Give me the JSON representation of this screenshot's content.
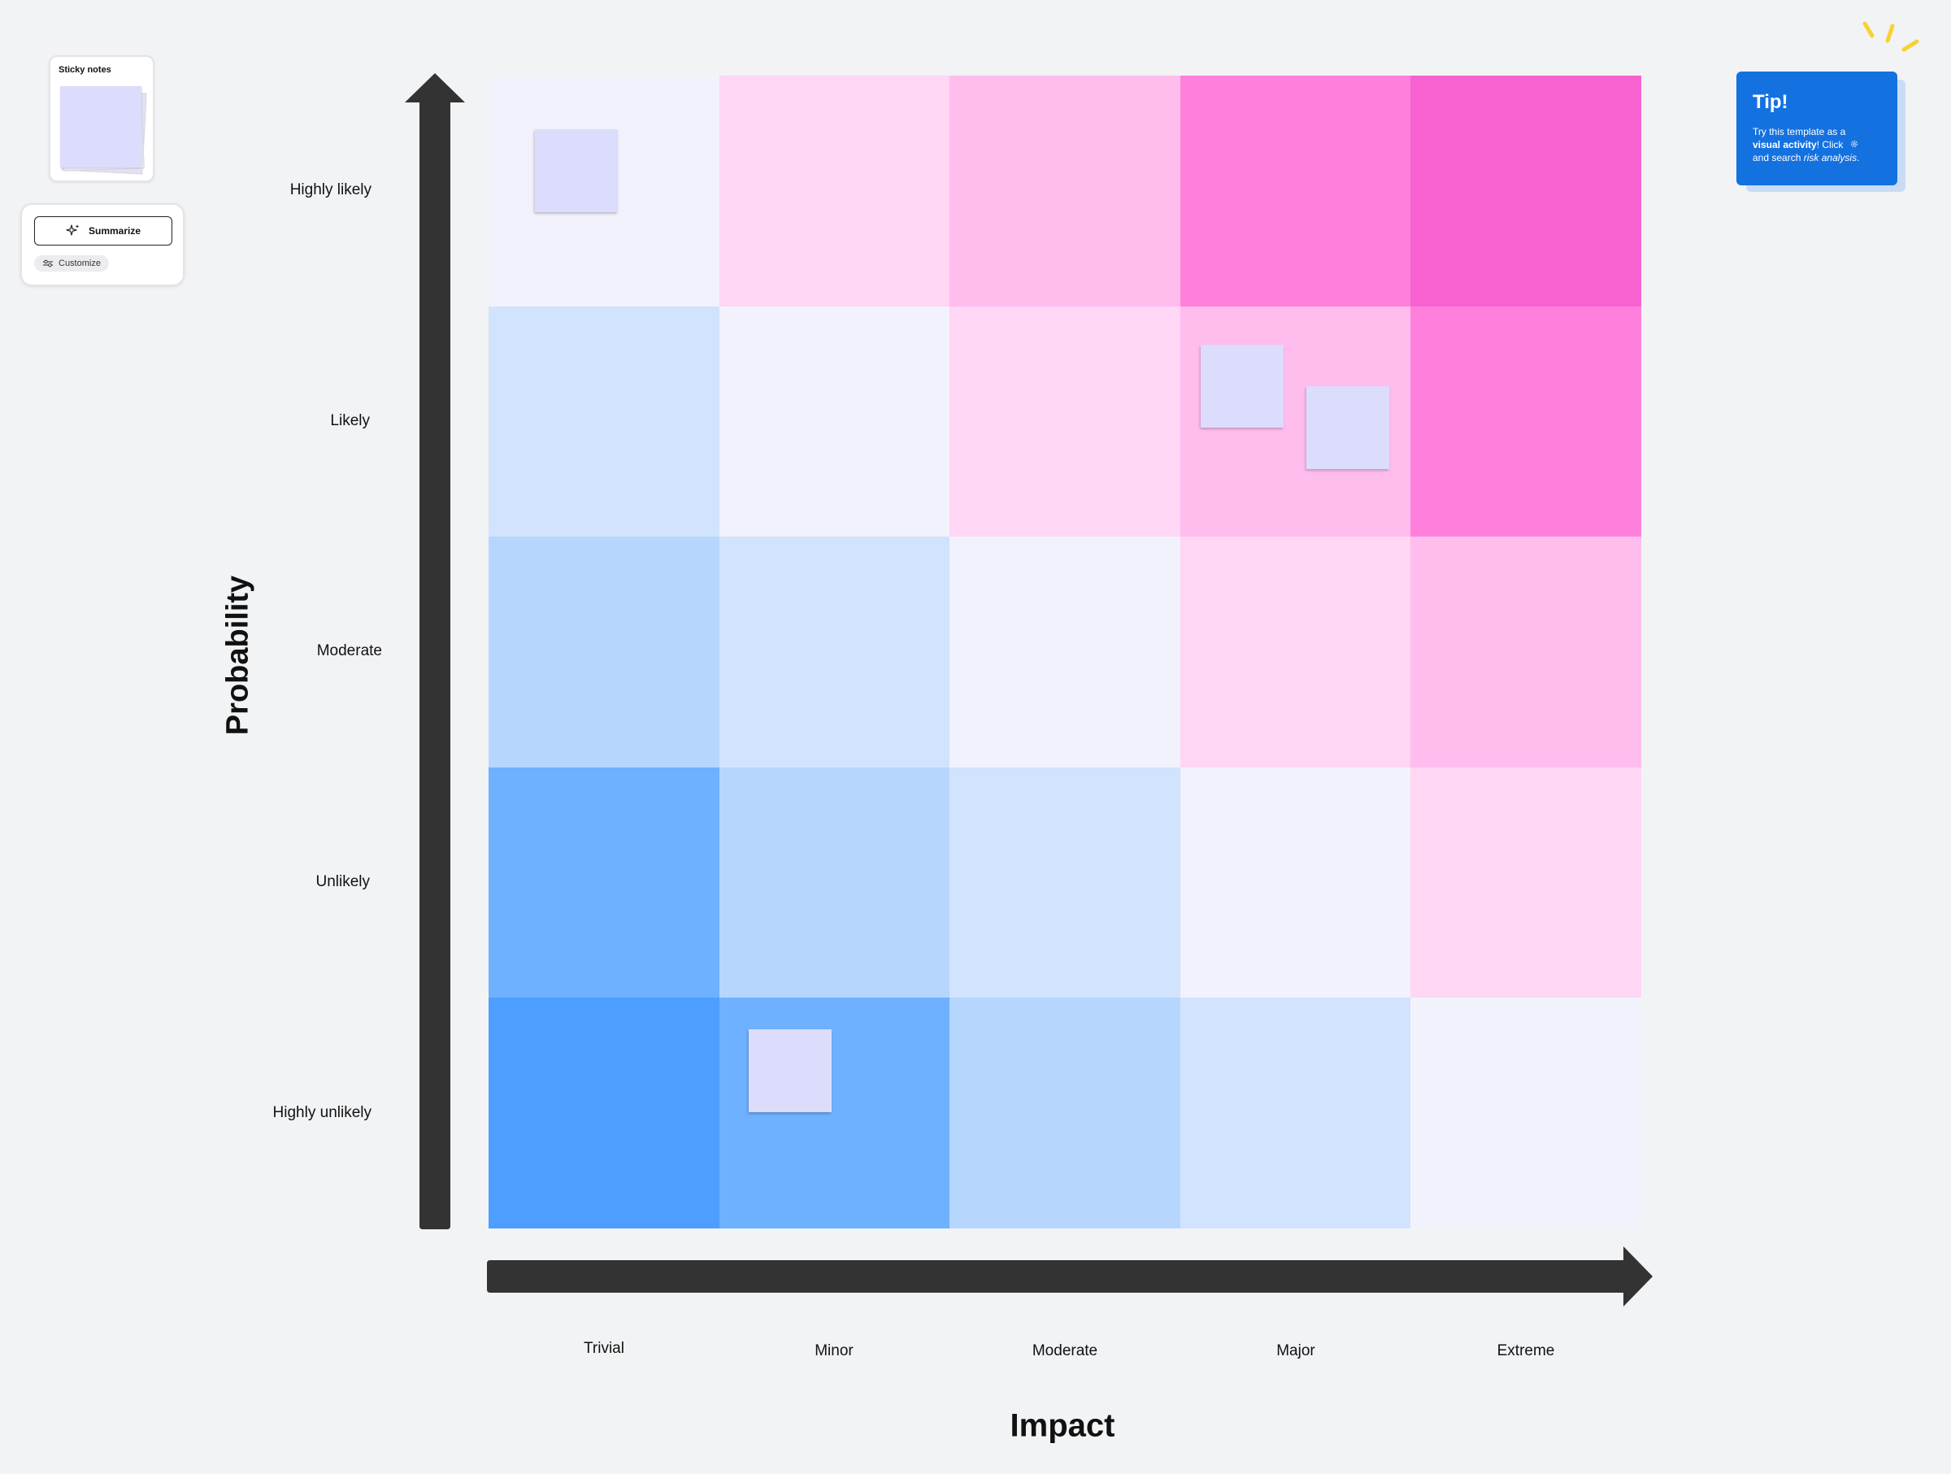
{
  "sticky_widget": {
    "title": "Sticky notes"
  },
  "ai_widget": {
    "summarize_label": "Summarize",
    "customize_label": "Customize"
  },
  "tip": {
    "title": "Tip!",
    "line1": "Try this template as a",
    "emphasis": "visual activity",
    "line2": "! Click",
    "line3": "and search",
    "italic": "risk analysis",
    "end": "."
  },
  "matrix": {
    "y_title": "Probability",
    "x_title": "Impact",
    "rows": [
      "Highly likely",
      "Likely",
      "Moderate",
      "Unlikely",
      "Highly unlikely"
    ],
    "cols": [
      "Trivial",
      "Minor",
      "Moderate",
      "Major",
      "Extreme"
    ],
    "cell_colors": [
      [
        "#f1f2fb",
        "#ffd6f4",
        "#ffbdee",
        "#ff80dc",
        "#f762d0"
      ],
      [
        "#d1e3fd",
        "#f1f2fb",
        "#ffd6f4",
        "#ffbdee",
        "#ff80dc"
      ],
      [
        "#b7d6fe",
        "#d1e3fd",
        "#f1f2fb",
        "#ffd6f4",
        "#ffbdee"
      ],
      [
        "#6eb1ff",
        "#b7d6fe",
        "#d1e3fd",
        "#f1f2fb",
        "#ffd6f4"
      ],
      [
        "#4e9eff",
        "#6eb1ff",
        "#b7d6fe",
        "#d1e3fd",
        "#f1f2fb"
      ]
    ],
    "notes": [
      {
        "row": 0,
        "col": 0
      },
      {
        "row": 1,
        "col": 3
      },
      {
        "row": 1,
        "col": 3
      },
      {
        "row": 4,
        "col": 1
      }
    ],
    "note_color": "#dcdcfc",
    "axis_color": "#333333"
  }
}
